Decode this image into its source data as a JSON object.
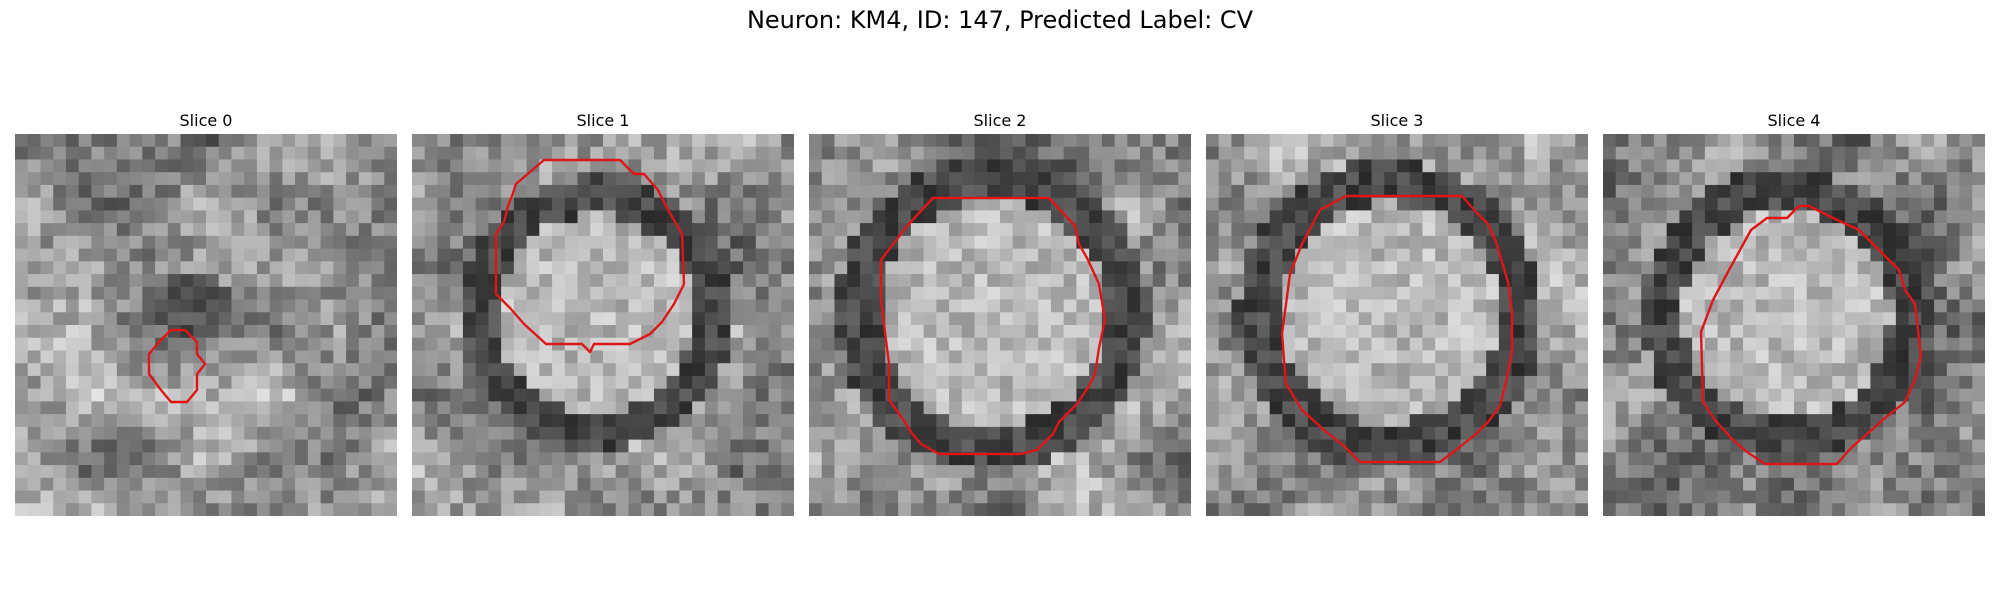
{
  "title": "Neuron: KM4, ID: 147, Predicted Label: CV",
  "contour_color": "#e01515",
  "panels": [
    {
      "label": "Slice 0",
      "seed": 11,
      "blob": {
        "r": 0.1,
        "center": "dark"
      }
    },
    {
      "label": "Slice 1",
      "seed": 23,
      "blob": {
        "r": 0.33,
        "center": "bright"
      }
    },
    {
      "label": "Slice 2",
      "seed": 37,
      "blob": {
        "r": 0.38,
        "center": "bright"
      }
    },
    {
      "label": "Slice 3",
      "seed": 51,
      "blob": {
        "r": 0.37,
        "center": "bright"
      }
    },
    {
      "label": "Slice 4",
      "seed": 67,
      "blob": {
        "r": 0.35,
        "center": "bright"
      }
    }
  ]
}
